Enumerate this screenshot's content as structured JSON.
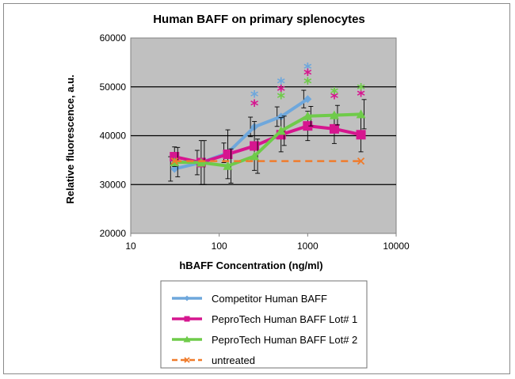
{
  "chart_data": {
    "type": "line",
    "title": "Human BAFF on primary splenocytes",
    "xlabel": "hBAFF Concentration (ng/ml)",
    "ylabel": "Relative fluorescence, a.u.",
    "x_scale": "log",
    "xlim": [
      10,
      10000
    ],
    "ylim": [
      20000,
      60000
    ],
    "x_ticks": [
      10,
      100,
      1000,
      10000
    ],
    "x_tick_labels": [
      "10",
      "100",
      "1000",
      "10000"
    ],
    "y_ticks": [
      20000,
      30000,
      40000,
      50000,
      60000
    ],
    "y_tick_labels": [
      "20000",
      "30000",
      "40000",
      "50000",
      "60000"
    ],
    "grid": "horizontal major",
    "plot_background": "#c0c0c0",
    "legend_position": "bottom",
    "significance_marker": "*",
    "series": [
      {
        "name": "Competitor Human BAFF",
        "color": "#6ea7dc",
        "marker": "diamond",
        "x": [
          31.25,
          62.5,
          125,
          250,
          500,
          1000
        ],
        "y": [
          33200,
          34500,
          36500,
          41800,
          43900,
          47500
        ],
        "error": [
          2500,
          2500,
          2000,
          2000,
          2000,
          1800
        ],
        "significance_y": [
          48300,
          51000,
          54000
        ]
      },
      {
        "name": "PeproTech Human BAFF Lot# 1",
        "color": "#d6168f",
        "marker": "square",
        "x": [
          31.25,
          62.5,
          125,
          250,
          500,
          1000,
          2000,
          4000
        ],
        "y": [
          35700,
          34500,
          36200,
          37900,
          40200,
          42000,
          41400,
          40200
        ],
        "error": [
          2000,
          4500,
          5000,
          5000,
          3500,
          3000,
          3000,
          3500
        ],
        "significance_y": [
          46500,
          49500,
          52800,
          48000,
          48500
        ]
      },
      {
        "name": "PeproTech Human BAFF Lot# 2",
        "color": "#6fcb4a",
        "marker": "triangle",
        "x": [
          31.25,
          62.5,
          125,
          250,
          500,
          1000,
          2000,
          4000
        ],
        "y": [
          34600,
          34500,
          33800,
          35800,
          41000,
          44000,
          44200,
          44400
        ],
        "error": [
          3000,
          4500,
          3500,
          3500,
          3000,
          2000,
          2000,
          3000
        ],
        "significance_y": [
          48000,
          51000,
          49000,
          49800
        ]
      },
      {
        "name": "untreated",
        "color": "#f07b2b",
        "marker": "x",
        "dashed": true,
        "x": [
          31.25,
          4000
        ],
        "y": [
          34800,
          34800
        ]
      }
    ]
  }
}
